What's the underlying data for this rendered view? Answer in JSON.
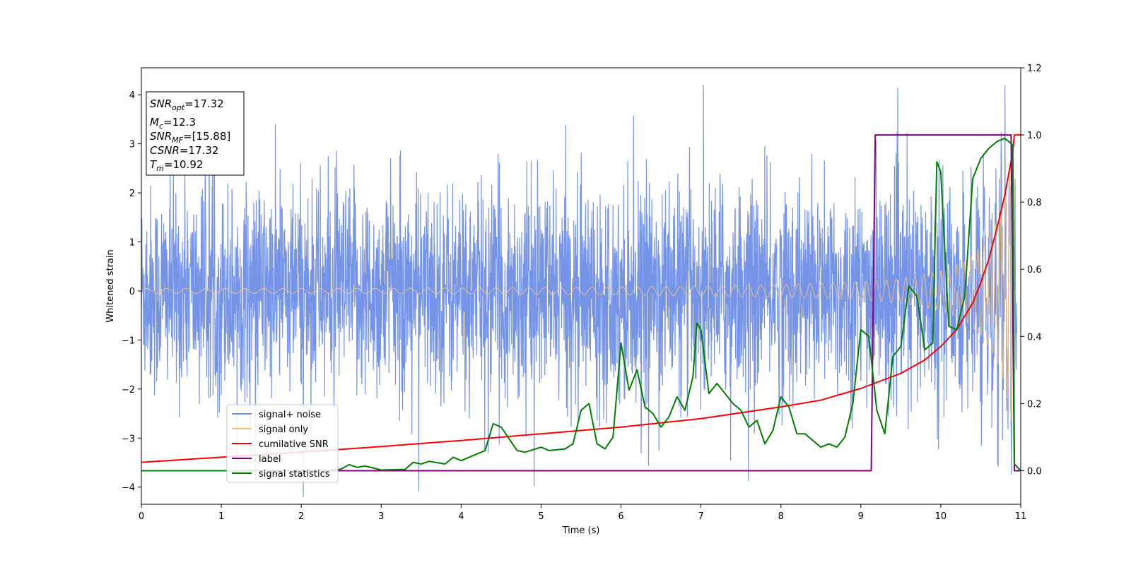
{
  "chart_data": {
    "type": "line",
    "xlabel": "Time (s)",
    "ylabel": "Whitened strain",
    "xlim": [
      0,
      11
    ],
    "ylim": [
      -4.35,
      4.55
    ],
    "y2lim": [
      -0.1,
      1.2
    ],
    "xticks": [
      0,
      1,
      2,
      3,
      4,
      5,
      6,
      7,
      8,
      9,
      10,
      11
    ],
    "yticks": [
      -4,
      -3,
      -2,
      -1,
      0,
      1,
      2,
      3,
      4
    ],
    "y2ticks": [
      "0.0",
      "0.2",
      "0.4",
      "0.6",
      "0.8",
      "1.0",
      "1.2"
    ],
    "grid": false,
    "legend_position": "lower-left",
    "info_box": {
      "lines": [
        {
          "sym": "SNR",
          "sub": "opt",
          "value": "=17.32"
        },
        {
          "sym": "M",
          "sub": "c",
          "value": "=12.3"
        },
        {
          "sym": "SNR",
          "sub": "MF",
          "value": "=[15.88]"
        },
        {
          "sym": "CSNR",
          "sub": "",
          "value": "=17.32"
        },
        {
          "sym": "T",
          "sub": "m",
          "value": "=10.92"
        }
      ]
    },
    "series": [
      {
        "name": "signal+ noise",
        "color": "#6f8ee6",
        "axis": "left",
        "description": "whitened noisy strain, approx. std 1.1 around 0"
      },
      {
        "name": "signal only",
        "color": "#f2c27a",
        "axis": "left",
        "description": "chirp with amplitude growing from ~0.05 to ~2.8 at 10.9 s",
        "envelope": [
          [
            0,
            0.05
          ],
          [
            2,
            0.05
          ],
          [
            4,
            0.06
          ],
          [
            6,
            0.08
          ],
          [
            8,
            0.13
          ],
          [
            9,
            0.18
          ],
          [
            9.5,
            0.25
          ],
          [
            10,
            0.4
          ],
          [
            10.3,
            0.6
          ],
          [
            10.5,
            0.9
          ],
          [
            10.7,
            1.4
          ],
          [
            10.8,
            1.9
          ],
          [
            10.9,
            2.8
          ],
          [
            10.92,
            2.9
          ]
        ]
      },
      {
        "name": "cumilative SNR",
        "color": "#ff0000",
        "axis": "right",
        "points": [
          [
            0,
            0.025
          ],
          [
            1,
            0.04
          ],
          [
            2,
            0.055
          ],
          [
            3,
            0.072
          ],
          [
            4,
            0.09
          ],
          [
            5,
            0.11
          ],
          [
            6,
            0.13
          ],
          [
            7,
            0.155
          ],
          [
            8,
            0.19
          ],
          [
            8.5,
            0.21
          ],
          [
            9,
            0.245
          ],
          [
            9.5,
            0.29
          ],
          [
            9.8,
            0.33
          ],
          [
            10,
            0.37
          ],
          [
            10.2,
            0.42
          ],
          [
            10.4,
            0.5
          ],
          [
            10.5,
            0.56
          ],
          [
            10.6,
            0.63
          ],
          [
            10.7,
            0.72
          ],
          [
            10.8,
            0.82
          ],
          [
            10.9,
            0.95
          ],
          [
            10.92,
            1.0
          ],
          [
            11,
            1.0
          ]
        ]
      },
      {
        "name": "label",
        "color": "#800080",
        "axis": "right",
        "points": [
          [
            0,
            0
          ],
          [
            9.13,
            0
          ],
          [
            9.18,
            1.0
          ],
          [
            10.88,
            1.0
          ],
          [
            10.92,
            0
          ],
          [
            11,
            0
          ]
        ]
      },
      {
        "name": "signal statistics",
        "color": "#007f00",
        "axis": "right",
        "points": [
          [
            0,
            0
          ],
          [
            2.3,
            0
          ],
          [
            2.5,
            0.005
          ],
          [
            2.6,
            0.018
          ],
          [
            2.7,
            0.01
          ],
          [
            2.8,
            0.014
          ],
          [
            3.0,
            0.002
          ],
          [
            3.3,
            0.004
          ],
          [
            3.4,
            0.025
          ],
          [
            3.5,
            0.02
          ],
          [
            3.6,
            0.028
          ],
          [
            3.8,
            0.02
          ],
          [
            3.9,
            0.04
          ],
          [
            4.0,
            0.03
          ],
          [
            4.2,
            0.05
          ],
          [
            4.3,
            0.06
          ],
          [
            4.4,
            0.14
          ],
          [
            4.5,
            0.13
          ],
          [
            4.7,
            0.06
          ],
          [
            4.8,
            0.055
          ],
          [
            5.0,
            0.07
          ],
          [
            5.1,
            0.06
          ],
          [
            5.3,
            0.065
          ],
          [
            5.4,
            0.08
          ],
          [
            5.5,
            0.18
          ],
          [
            5.6,
            0.2
          ],
          [
            5.7,
            0.08
          ],
          [
            5.8,
            0.065
          ],
          [
            5.9,
            0.1
          ],
          [
            6.0,
            0.38
          ],
          [
            6.1,
            0.24
          ],
          [
            6.15,
            0.27
          ],
          [
            6.2,
            0.3
          ],
          [
            6.3,
            0.19
          ],
          [
            6.4,
            0.17
          ],
          [
            6.5,
            0.13
          ],
          [
            6.6,
            0.16
          ],
          [
            6.7,
            0.22
          ],
          [
            6.8,
            0.18
          ],
          [
            6.9,
            0.28
          ],
          [
            6.95,
            0.44
          ],
          [
            7.0,
            0.42
          ],
          [
            7.1,
            0.23
          ],
          [
            7.2,
            0.26
          ],
          [
            7.4,
            0.2
          ],
          [
            7.5,
            0.18
          ],
          [
            7.6,
            0.13
          ],
          [
            7.7,
            0.15
          ],
          [
            7.8,
            0.08
          ],
          [
            7.9,
            0.12
          ],
          [
            8.0,
            0.22
          ],
          [
            8.1,
            0.19
          ],
          [
            8.2,
            0.11
          ],
          [
            8.3,
            0.11
          ],
          [
            8.4,
            0.09
          ],
          [
            8.5,
            0.07
          ],
          [
            8.6,
            0.08
          ],
          [
            8.7,
            0.07
          ],
          [
            8.8,
            0.1
          ],
          [
            8.9,
            0.2
          ],
          [
            9.0,
            0.42
          ],
          [
            9.1,
            0.4
          ],
          [
            9.2,
            0.18
          ],
          [
            9.3,
            0.11
          ],
          [
            9.4,
            0.34
          ],
          [
            9.5,
            0.37
          ],
          [
            9.6,
            0.55
          ],
          [
            9.7,
            0.52
          ],
          [
            9.8,
            0.36
          ],
          [
            9.9,
            0.38
          ],
          [
            9.95,
            0.92
          ],
          [
            10.0,
            0.89
          ],
          [
            10.1,
            0.43
          ],
          [
            10.2,
            0.42
          ],
          [
            10.3,
            0.52
          ],
          [
            10.4,
            0.87
          ],
          [
            10.5,
            0.93
          ],
          [
            10.6,
            0.96
          ],
          [
            10.7,
            0.98
          ],
          [
            10.8,
            0.99
          ],
          [
            10.9,
            0.97
          ],
          [
            10.92,
            0.02
          ],
          [
            11.0,
            0.0
          ]
        ]
      }
    ]
  }
}
